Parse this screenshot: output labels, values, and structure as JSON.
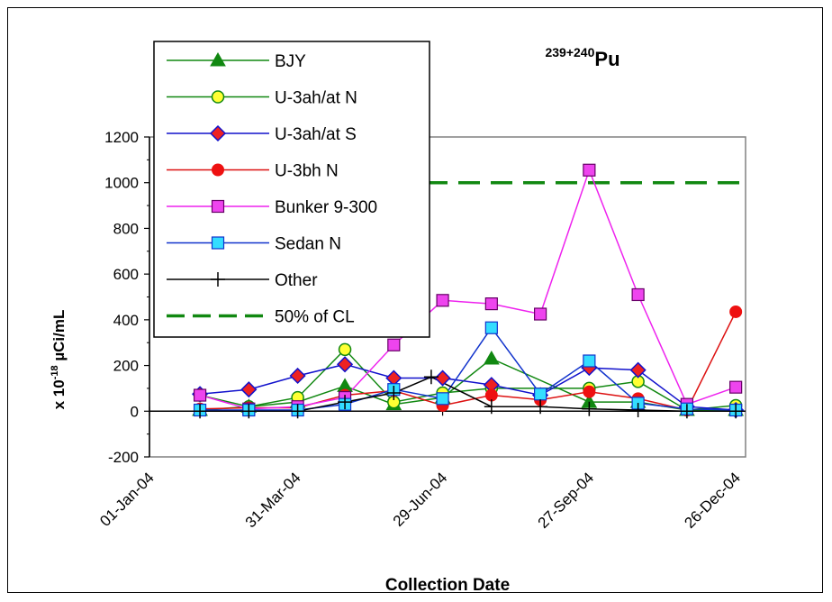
{
  "chart_data": {
    "type": "line",
    "title_prefix": "239+240",
    "title_main": "Pu",
    "xlabel": "Collection Date",
    "ylabel_main": "x 10",
    "ylabel_exp": "-18",
    "ylabel_unit": " µCi/mL",
    "ylim": [
      -200,
      1200
    ],
    "yticks": [
      -200,
      0,
      200,
      400,
      600,
      800,
      1000,
      1200
    ],
    "xlim": [
      "2004-01-01",
      "2005-01-01"
    ],
    "xticks": [
      "2004-01-01",
      "2004-03-31",
      "2004-06-29",
      "2004-09-27",
      "2004-12-26"
    ],
    "xtick_labels": [
      "01-Jan-04",
      "31-Mar-04",
      "29-Jun-04",
      "27-Sep-04",
      "26-Dec-04"
    ],
    "grid": false,
    "legend_position": "top-left",
    "series": [
      {
        "name": "BJY",
        "color": "#118811",
        "marker": "triangle",
        "points": [
          [
            "2004-02-01",
            5
          ],
          [
            "2004-03-02",
            20
          ],
          [
            "2004-04-01",
            40
          ],
          [
            "2004-04-30",
            110
          ],
          [
            "2004-05-30",
            30
          ],
          [
            "2004-06-29",
            60
          ],
          [
            "2004-07-29",
            230
          ],
          [
            "2004-09-27",
            40
          ],
          [
            "2004-10-27",
            40
          ],
          [
            "2004-11-26",
            5
          ],
          [
            "2004-12-26",
            5
          ]
        ]
      },
      {
        "name": "U-3ah/at N",
        "color": "#118811",
        "marker": "circle-yellow",
        "points": [
          [
            "2004-02-01",
            70
          ],
          [
            "2004-03-02",
            20
          ],
          [
            "2004-04-01",
            60
          ],
          [
            "2004-04-30",
            270
          ],
          [
            "2004-05-30",
            40
          ],
          [
            "2004-06-29",
            80
          ],
          [
            "2004-07-29",
            100
          ],
          [
            "2004-09-27",
            100
          ],
          [
            "2004-10-27",
            130
          ],
          [
            "2004-11-26",
            5
          ],
          [
            "2004-12-26",
            25
          ]
        ]
      },
      {
        "name": "U-3ah/at S",
        "color": "#1111cc",
        "marker": "diamond",
        "points": [
          [
            "2004-02-01",
            75
          ],
          [
            "2004-03-02",
            95
          ],
          [
            "2004-04-01",
            155
          ],
          [
            "2004-04-30",
            205
          ],
          [
            "2004-05-30",
            145
          ],
          [
            "2004-06-29",
            145
          ],
          [
            "2004-07-29",
            115
          ],
          [
            "2004-08-28",
            70
          ],
          [
            "2004-09-27",
            190
          ],
          [
            "2004-10-27",
            180
          ],
          [
            "2004-11-26",
            20
          ],
          [
            "2004-12-26",
            5
          ]
        ]
      },
      {
        "name": "U-3bh N",
        "color": "#dd1111",
        "marker": "circle-red",
        "points": [
          [
            "2004-02-01",
            10
          ],
          [
            "2004-03-02",
            15
          ],
          [
            "2004-04-01",
            15
          ],
          [
            "2004-04-30",
            70
          ],
          [
            "2004-05-30",
            90
          ],
          [
            "2004-06-29",
            25
          ],
          [
            "2004-07-29",
            70
          ],
          [
            "2004-08-28",
            50
          ],
          [
            "2004-09-27",
            85
          ],
          [
            "2004-10-27",
            55
          ],
          [
            "2004-11-26",
            5
          ],
          [
            "2004-12-26",
            435
          ]
        ]
      },
      {
        "name": "Bunker 9-300",
        "color": "#ee22ee",
        "marker": "square-magenta",
        "points": [
          [
            "2004-02-01",
            70
          ],
          [
            "2004-03-02",
            10
          ],
          [
            "2004-04-01",
            20
          ],
          [
            "2004-04-30",
            60
          ],
          [
            "2004-05-30",
            290
          ],
          [
            "2004-06-29",
            485
          ],
          [
            "2004-07-29",
            470
          ],
          [
            "2004-08-28",
            425
          ],
          [
            "2004-09-27",
            1055
          ],
          [
            "2004-10-27",
            510
          ],
          [
            "2004-11-26",
            30
          ],
          [
            "2004-12-26",
            105
          ]
        ]
      },
      {
        "name": "Sedan N",
        "color": "#1133cc",
        "marker": "square-cyan",
        "points": [
          [
            "2004-02-01",
            5
          ],
          [
            "2004-03-02",
            5
          ],
          [
            "2004-04-01",
            5
          ],
          [
            "2004-04-30",
            30
          ],
          [
            "2004-05-30",
            95
          ],
          [
            "2004-06-29",
            55
          ],
          [
            "2004-07-29",
            365
          ],
          [
            "2004-08-28",
            75
          ],
          [
            "2004-09-27",
            220
          ],
          [
            "2004-10-27",
            35
          ],
          [
            "2004-11-26",
            10
          ],
          [
            "2004-12-26",
            5
          ]
        ]
      },
      {
        "name": "Other",
        "color": "#000000",
        "marker": "plus",
        "points": [
          [
            "2004-02-01",
            0
          ],
          [
            "2004-03-02",
            0
          ],
          [
            "2004-04-01",
            0
          ],
          [
            "2004-04-30",
            40
          ],
          [
            "2004-05-30",
            80
          ],
          [
            "2004-06-22",
            150
          ],
          [
            "2004-07-29",
            20
          ],
          [
            "2004-08-28",
            20
          ],
          [
            "2004-09-27",
            10
          ],
          [
            "2004-10-27",
            5
          ],
          [
            "2004-11-26",
            0
          ],
          [
            "2004-12-26",
            0
          ]
        ]
      },
      {
        "name": "50% of CL",
        "color": "#118811",
        "marker": "dashed-line",
        "points": [
          [
            "2004-01-01",
            1000
          ],
          [
            "2005-01-01",
            1000
          ]
        ]
      }
    ]
  }
}
